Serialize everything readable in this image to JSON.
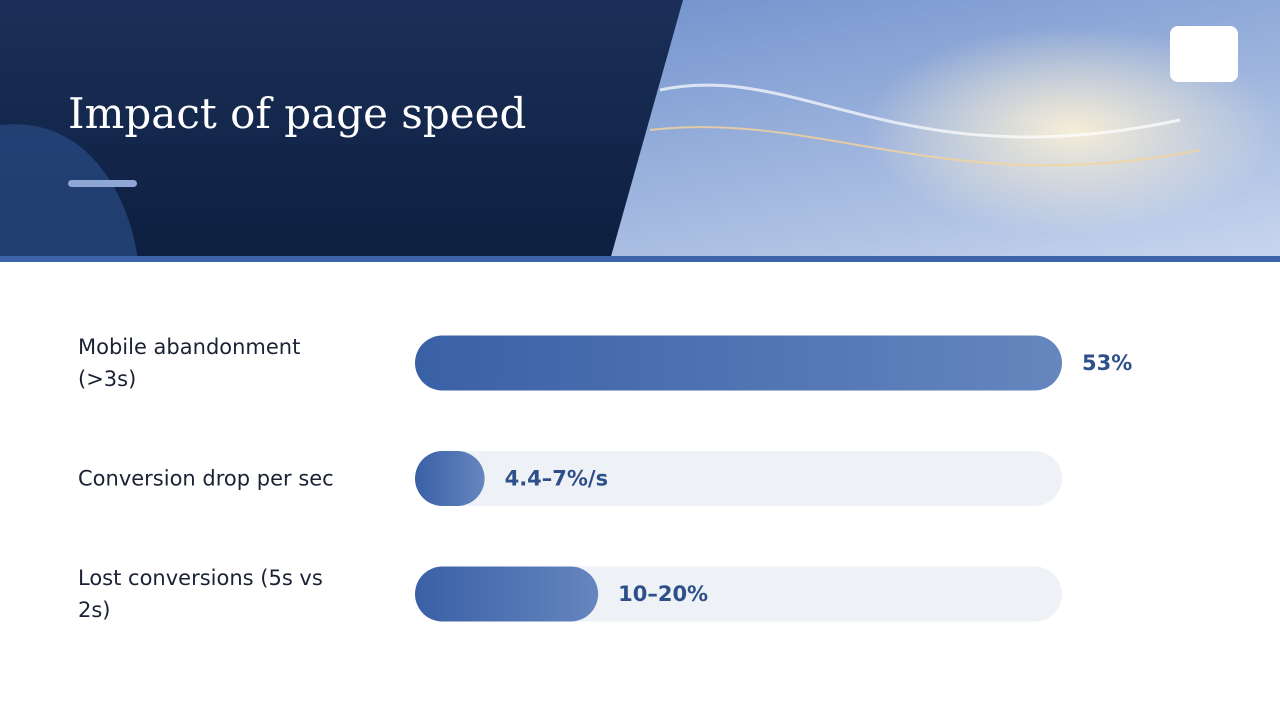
{
  "chart_data": {
    "type": "hbar",
    "title": "Impact of page speed",
    "categories": [
      "Mobile abandonment (>3s)",
      "Conversion drop per sec",
      "Lost conversions (5s vs 2s)"
    ],
    "values": [
      53,
      5.7,
      15
    ],
    "value_labels": [
      "53%",
      "4.4–7%/s",
      "10–20%"
    ],
    "color": "#3d64a8"
  }
}
